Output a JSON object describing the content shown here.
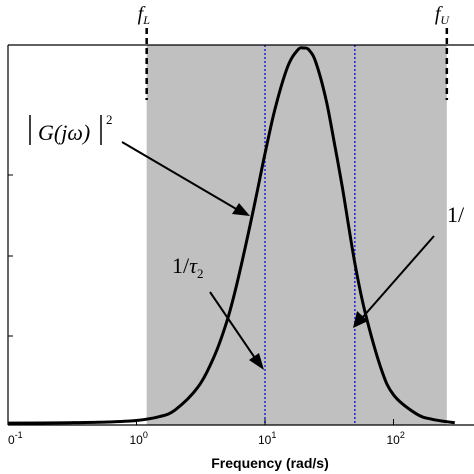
{
  "chart_data": {
    "type": "line",
    "xscale": "log",
    "xlim": [
      0.1,
      300
    ],
    "xlabel": "Frequency (rad/s)",
    "x_ticks": [
      {
        "base": "10",
        "exp": "-1"
      },
      {
        "base": "10",
        "exp": "0"
      },
      {
        "base": "10",
        "exp": "1"
      },
      {
        "base": "10",
        "exp": "2"
      }
    ],
    "band": {
      "from": 1.2,
      "to": 260,
      "color": "#c0c0c0",
      "label_lower": {
        "f": "f",
        "sub": "L"
      },
      "label_upper": {
        "f": "f",
        "sub": "U"
      }
    },
    "corner_lines": [
      {
        "x": 10,
        "color": "#1f2fd8"
      },
      {
        "x": 50,
        "color": "#1f2fd8"
      }
    ],
    "curve": {
      "name": "|G(jω)|²",
      "color": "#000000",
      "x": [
        0.1,
        0.3,
        0.6,
        1,
        1.5,
        2,
        3,
        4,
        5,
        6,
        8,
        10,
        12,
        15,
        18,
        20,
        22,
        25,
        30,
        35,
        40,
        50,
        60,
        80,
        100,
        150,
        200,
        300
      ],
      "y": [
        0.005,
        0.006,
        0.008,
        0.012,
        0.022,
        0.04,
        0.1,
        0.18,
        0.27,
        0.37,
        0.56,
        0.72,
        0.84,
        0.95,
        0.995,
        1.0,
        0.995,
        0.96,
        0.86,
        0.74,
        0.63,
        0.43,
        0.3,
        0.15,
        0.08,
        0.03,
        0.015,
        0.006
      ]
    },
    "annotations": [
      {
        "name": "magnitude-label",
        "text": "|G(jω)|²"
      },
      {
        "name": "tau2-label",
        "text": "1/τ₂"
      },
      {
        "name": "tau1-label",
        "text": "1/"
      }
    ]
  }
}
